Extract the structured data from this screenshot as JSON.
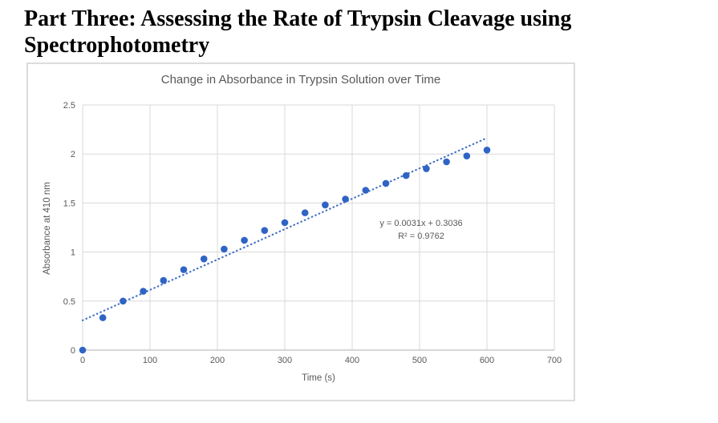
{
  "page": {
    "heading": "Part Three: Assessing the Rate of Trypsin Cleavage using Spectrophotometry"
  },
  "colors": {
    "marker": "#2F64C5",
    "trendline": "#4472C4",
    "gridline": "#D9D9D9",
    "axis_line": "#BFBFBF",
    "chart_text": "#595959",
    "chart_border": "#DCDCDC",
    "heading_text": "#000000"
  },
  "chart_data": {
    "type": "scatter",
    "title": "Change in Absorbance in Trypsin Solution over Time",
    "xlabel": "Time (s)",
    "ylabel": "Absorbance at 410 nm",
    "xlim": [
      0,
      700
    ],
    "ylim": [
      0,
      2.5
    ],
    "x_ticks": [
      "0",
      "100",
      "200",
      "300",
      "400",
      "500",
      "600",
      "700"
    ],
    "x_tick_values": [
      0,
      100,
      200,
      300,
      400,
      500,
      600,
      700
    ],
    "y_ticks": [
      "0",
      "0.5",
      "1",
      "1.5",
      "2",
      "2.5"
    ],
    "y_tick_values": [
      0,
      0.5,
      1,
      1.5,
      2,
      2.5
    ],
    "grid": true,
    "legend": false,
    "x": [
      0,
      30,
      60,
      90,
      120,
      150,
      180,
      210,
      240,
      270,
      300,
      330,
      360,
      390,
      420,
      450,
      480,
      510,
      540,
      570,
      600
    ],
    "y": [
      0.0,
      0.33,
      0.5,
      0.6,
      0.71,
      0.82,
      0.93,
      1.03,
      1.12,
      1.22,
      1.3,
      1.4,
      1.48,
      1.54,
      1.63,
      1.7,
      1.78,
      1.85,
      1.92,
      1.98,
      2.04
    ],
    "trendline": {
      "style": "dotted",
      "slope": 0.0031,
      "intercept": 0.3036,
      "r_squared": 0.9762,
      "x_range": [
        0,
        600
      ],
      "equation_label": "y = 0.0031x + 0.3036",
      "r2_label": "R² = 0.9762"
    }
  }
}
